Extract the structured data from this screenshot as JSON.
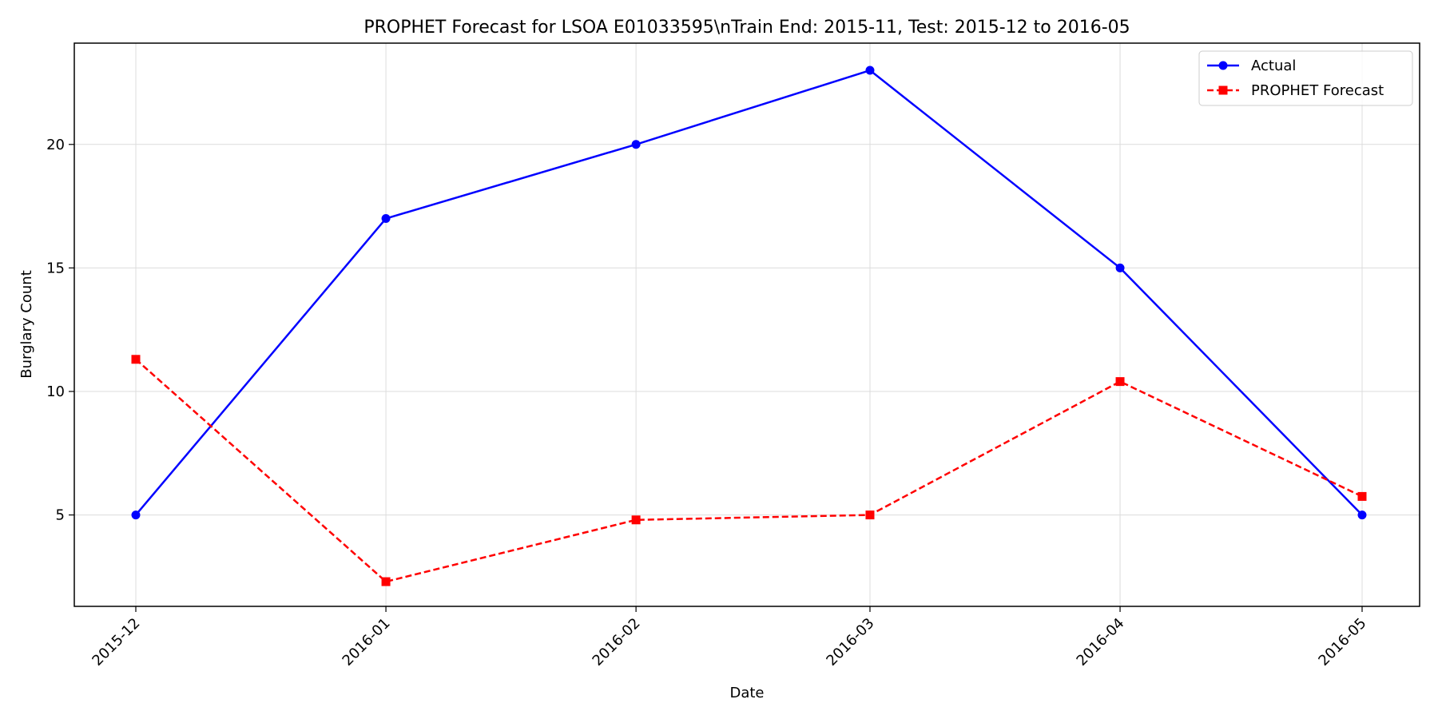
{
  "chart_data": {
    "type": "line",
    "title": "PROPHET Forecast for LSOA E01033595\\nTrain End: 2015-11, Test: 2015-12 to 2016-05",
    "xlabel": "Date",
    "ylabel": "Burglary Count",
    "x": [
      "2015-12",
      "2016-01",
      "2016-02",
      "2016-03",
      "2016-04",
      "2016-05"
    ],
    "x_days": [
      0,
      31,
      62,
      91,
      122,
      152
    ],
    "ylim": [
      1.3,
      24.1
    ],
    "yticks": [
      5,
      10,
      15,
      20
    ],
    "grid": true,
    "legend_position": "top-right",
    "series": [
      {
        "name": "Actual",
        "color": "#0000ff",
        "line_style": "solid",
        "marker": "circle",
        "values": [
          5,
          17,
          20,
          23,
          15,
          5
        ]
      },
      {
        "name": "PROPHET Forecast",
        "color": "#ff0000",
        "line_style": "dashed",
        "marker": "square",
        "values": [
          11.3,
          2.3,
          4.8,
          5.0,
          10.4,
          5.75
        ]
      }
    ]
  }
}
